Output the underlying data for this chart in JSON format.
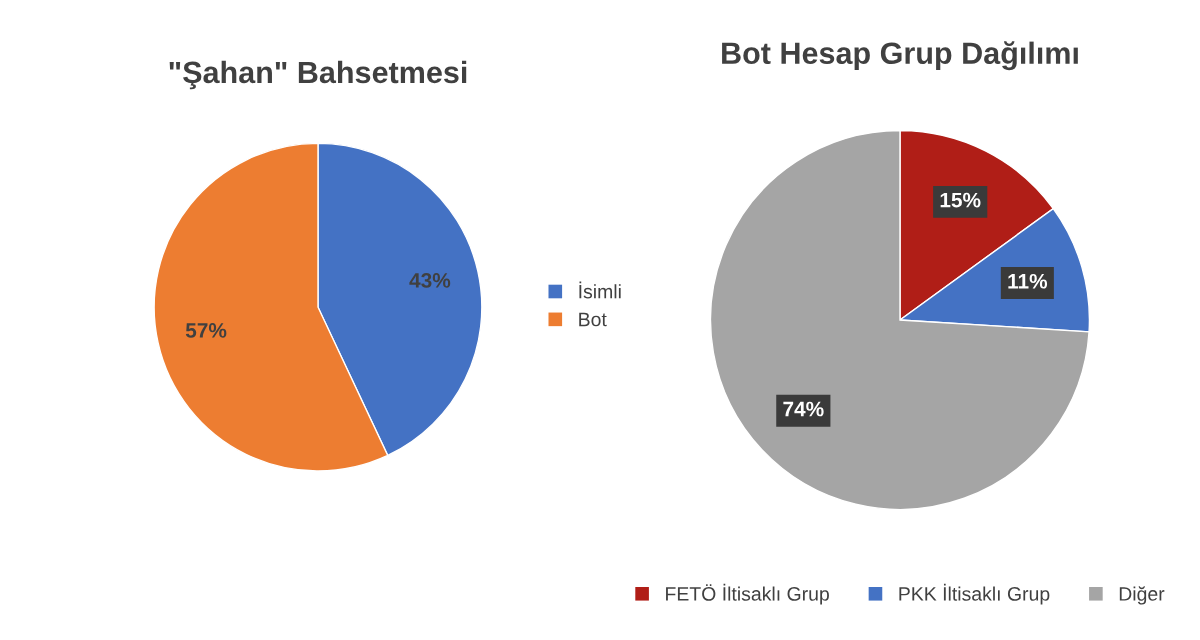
{
  "chart_data": [
    {
      "type": "pie",
      "title": "\"Şahan\" Bahsetmesi",
      "categories": [
        "İsimli",
        "Bot"
      ],
      "values": [
        43,
        57
      ],
      "colors": [
        "#4472c4",
        "#ed7d31"
      ],
      "value_labels": [
        "43%",
        "57%"
      ],
      "legend": "right"
    },
    {
      "type": "pie",
      "title": "Bot Hesap Grup Dağılımı",
      "categories": [
        "FETÖ İltisaklı Grup",
        "PKK İltisaklı Grup",
        "Diğer"
      ],
      "values": [
        15,
        11,
        74
      ],
      "colors": [
        "#b01e17",
        "#4472c4",
        "#a5a5a5"
      ],
      "value_labels": [
        "15%",
        "11%",
        "74%"
      ],
      "legend": "bottom"
    }
  ]
}
